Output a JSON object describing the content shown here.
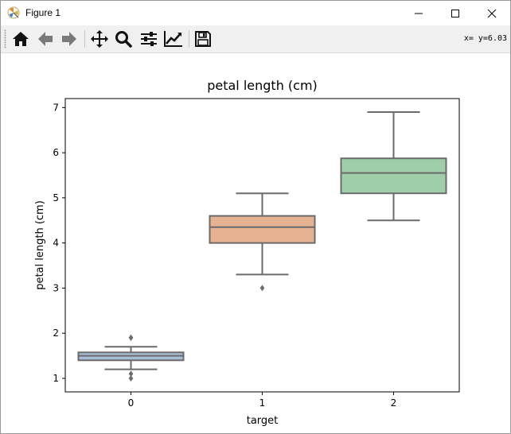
{
  "window": {
    "title": "Figure 1",
    "icon": "matplotlib-icon",
    "controls": [
      "minimize-icon",
      "maximize-icon",
      "close-icon"
    ]
  },
  "toolbar": {
    "tools": [
      "home-icon",
      "back-arrow-icon",
      "forward-arrow-icon",
      "pan-icon",
      "zoom-icon",
      "subplots-config-icon",
      "edit-axis-icon",
      "save-icon"
    ],
    "coords_readout": "x= y=6.03"
  },
  "chart_data": {
    "type": "box",
    "title": "petal length (cm)",
    "xlabel": "target",
    "ylabel": "petal length (cm)",
    "categories": [
      "0",
      "1",
      "2"
    ],
    "ylim": [
      0.7,
      7.2
    ],
    "yticks": [
      1,
      2,
      3,
      4,
      5,
      6,
      7
    ],
    "grid": false,
    "boxes": [
      {
        "category": "0",
        "whisker_low": 1.2,
        "q1": 1.4,
        "median": 1.5,
        "q3": 1.575,
        "whisker_high": 1.7,
        "outliers": [
          1.0,
          1.1,
          1.9,
          1.9
        ],
        "color": "#a7bdd8"
      },
      {
        "category": "1",
        "whisker_low": 3.3,
        "q1": 4.0,
        "median": 4.35,
        "q3": 4.6,
        "whisker_high": 5.1,
        "outliers": [
          3.0
        ],
        "color": "#e5b292"
      },
      {
        "category": "2",
        "whisker_low": 4.5,
        "q1": 5.1,
        "median": 5.55,
        "q3": 5.875,
        "whisker_high": 6.9,
        "outliers": [],
        "color": "#9ecfa8"
      }
    ],
    "line_color": "#6b6b6b"
  }
}
